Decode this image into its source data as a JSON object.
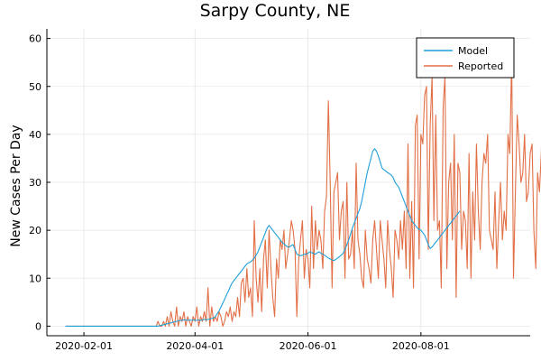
{
  "chart_data": {
    "type": "line",
    "title": "Sarpy County, NE",
    "xlabel": "",
    "ylabel": "New Cases Per Day",
    "x_start": "2020-01-22",
    "x_step_days": 1,
    "xlim": [
      "2020-01-12",
      "2020-09-29"
    ],
    "ylim": [
      -2,
      62
    ],
    "x_ticks": [
      "2020-02-01",
      "2020-04-01",
      "2020-06-01",
      "2020-08-01"
    ],
    "y_ticks": [
      0,
      10,
      20,
      30,
      40,
      50,
      60
    ],
    "grid": true,
    "legend_position": "top-right",
    "series": [
      {
        "name": "Model",
        "color": "#1f9fd8",
        "values": [
          0,
          0,
          0,
          0,
          0,
          0,
          0,
          0,
          0,
          0,
          0,
          0,
          0,
          0,
          0,
          0,
          0,
          0,
          0,
          0,
          0,
          0,
          0,
          0,
          0,
          0,
          0,
          0,
          0,
          0,
          0,
          0,
          0,
          0,
          0,
          0,
          0,
          0,
          0,
          0,
          0,
          0,
          0,
          0,
          0,
          0,
          0,
          0,
          0,
          0,
          0,
          0.1,
          0.2,
          0.3,
          0.4,
          0.5,
          0.6,
          0.7,
          0.8,
          0.9,
          1,
          1.1,
          1.2,
          1.2,
          1.3,
          1.3,
          1.2,
          1.3,
          1.2,
          1.3,
          1.2,
          1.2,
          1.3,
          1.2,
          1.3,
          1.4,
          1.3,
          1.4,
          1.5,
          1.6,
          1.7,
          2,
          2.6,
          3.2,
          4,
          4.8,
          5.6,
          6.5,
          7.3,
          8.2,
          9,
          9.5,
          10,
          10.5,
          11,
          11.5,
          12,
          12.5,
          13,
          13.2,
          13.4,
          13.8,
          14.2,
          14.8,
          15.5,
          16.5,
          17.5,
          18.5,
          19.5,
          20.5,
          21,
          20.5,
          20,
          19.5,
          19,
          18.5,
          18,
          17.5,
          17.2,
          16.8,
          16.5,
          16.5,
          16.8,
          17,
          16,
          15,
          14.8,
          14.7,
          14.8,
          15,
          15,
          15.2,
          15.5,
          15.3,
          15.2,
          15,
          15.3,
          15.5,
          15.2,
          15,
          14.8,
          14.5,
          14.2,
          14,
          13.8,
          13.7,
          13.9,
          14.2,
          14.5,
          14.8,
          15.2,
          16,
          17,
          18,
          19.2,
          20.5,
          21.5,
          22.5,
          23.5,
          24.5,
          26,
          28,
          30,
          32,
          33.5,
          35,
          36.5,
          37,
          36.5,
          35.5,
          34.2,
          33,
          32.6,
          32.4,
          32,
          31.8,
          31.5,
          31,
          30,
          29.5,
          29,
          28,
          27,
          26,
          25,
          24,
          23,
          22,
          21.5,
          21,
          20.5,
          20.2,
          20,
          19.5,
          19,
          18,
          17,
          16.2,
          16.5,
          17,
          17.5,
          18,
          18.5,
          19,
          19.5,
          20,
          20.5,
          21,
          21.5,
          22,
          22.5,
          23,
          23.5,
          24
        ]
      },
      {
        "name": "Reported",
        "color": "#e26f46",
        "values": [
          0,
          0,
          0,
          0,
          0,
          0,
          0,
          0,
          0,
          0,
          0,
          0,
          0,
          0,
          0,
          0,
          0,
          0,
          0,
          0,
          0,
          0,
          0,
          0,
          0,
          0,
          0,
          0,
          0,
          0,
          0,
          0,
          0,
          0,
          0,
          0,
          0,
          0,
          0,
          0,
          0,
          0,
          0,
          0,
          0,
          0,
          0,
          0,
          0,
          0,
          1,
          0,
          0,
          1,
          0,
          2,
          0,
          3,
          1,
          0,
          4,
          0,
          2,
          1,
          3,
          0,
          2,
          1,
          0,
          2,
          1,
          4,
          0,
          2,
          1,
          3,
          1,
          8,
          0,
          4,
          1,
          2,
          1,
          3,
          2,
          0,
          1,
          3,
          2,
          4,
          1,
          3,
          2,
          6,
          2,
          9,
          10,
          5,
          12,
          6,
          8,
          2,
          22,
          10,
          5,
          12,
          3,
          14,
          18,
          8,
          20,
          12,
          6,
          2,
          14,
          10,
          18,
          16,
          20,
          12,
          15,
          18,
          22,
          20,
          16,
          2,
          14,
          18,
          22,
          10,
          16,
          14,
          8,
          25,
          12,
          22,
          16,
          20,
          18,
          12,
          24,
          27,
          47,
          30,
          8,
          28,
          30,
          32,
          18,
          24,
          26,
          10,
          30,
          14,
          15,
          20,
          12,
          34,
          18,
          15,
          10,
          8,
          20,
          14,
          12,
          9,
          18,
          22,
          16,
          10,
          22,
          18,
          14,
          8,
          22,
          16,
          12,
          6,
          20,
          18,
          14,
          22,
          16,
          24,
          12,
          38,
          10,
          26,
          8,
          42,
          44,
          14,
          40,
          38,
          48,
          50,
          16,
          42,
          52,
          22,
          44,
          20,
          22,
          8,
          46,
          52,
          12,
          30,
          34,
          18,
          40,
          6,
          34,
          32,
          16,
          24,
          22,
          12,
          36,
          10,
          28,
          18,
          38,
          24,
          16,
          30,
          36,
          34,
          40,
          20,
          18,
          16,
          28,
          12,
          22,
          30,
          18,
          24,
          20,
          40,
          36,
          56,
          10,
          28,
          44,
          38,
          30,
          32,
          40,
          26,
          28,
          36,
          38,
          20,
          12,
          32,
          28,
          36,
          50,
          26,
          30
        ]
      }
    ]
  }
}
